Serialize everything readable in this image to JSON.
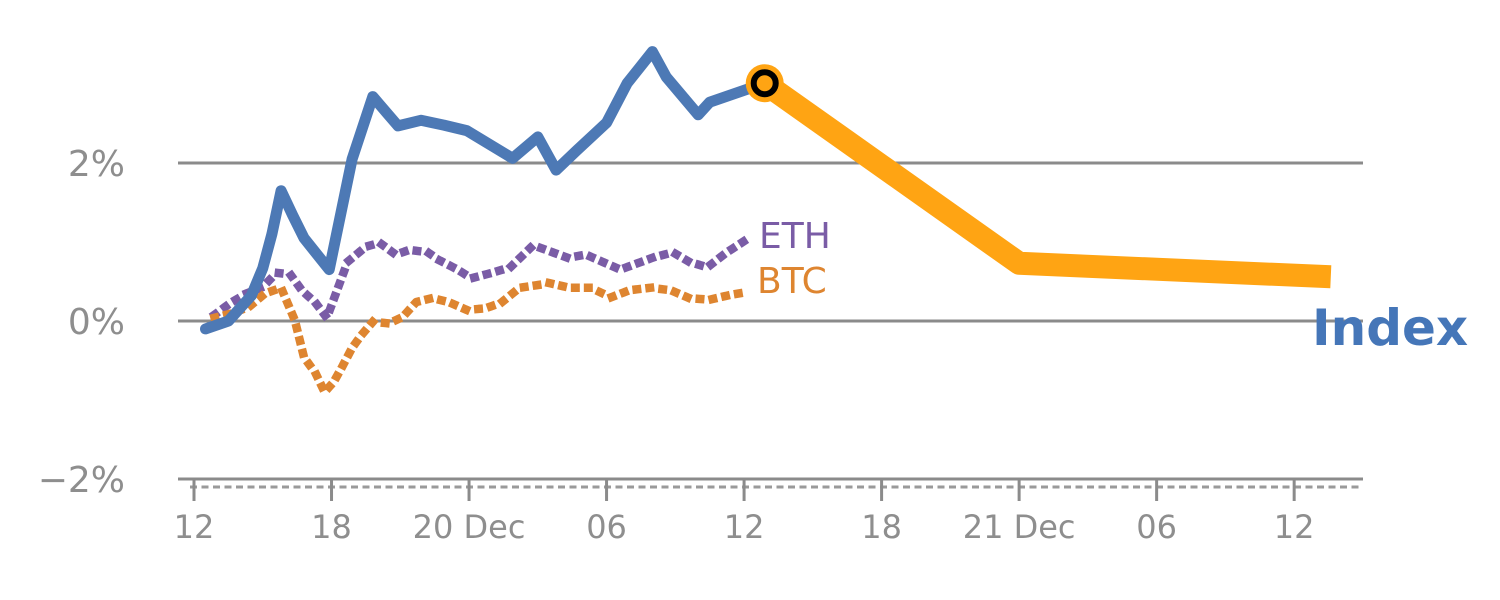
{
  "labels": {
    "eth": "ETH",
    "btc": "BTC",
    "index": "Index"
  },
  "colors": {
    "index_line": "#4d79b5",
    "index_label": "#4576b8",
    "forecast_line": "#ffa413",
    "eth": "#7a5ca6",
    "btc": "#de8530",
    "gridline": "#8b8b8b",
    "minor_ruler": "#9a9a9a",
    "tick_text": "#8e8e8e",
    "marker_ring": "#000000"
  },
  "chart_data": {
    "type": "line",
    "title": "",
    "xlabel": "",
    "ylabel": "",
    "x_unit": "hours, ticks every 6h",
    "ylim": [
      -2.3,
      3.6
    ],
    "grid": "horizontal-only",
    "y_axis": {
      "ticks": [
        {
          "label": "2%",
          "value": 2
        },
        {
          "label": "0%",
          "value": 0
        },
        {
          "label": "−2%",
          "value": -2
        }
      ]
    },
    "x_axis": {
      "ticks": [
        {
          "label": "12",
          "t": 0
        },
        {
          "label": "18",
          "t": 6
        },
        {
          "label": "20 Dec",
          "t": 12
        },
        {
          "label": "06",
          "t": 18
        },
        {
          "label": "12",
          "t": 24
        },
        {
          "label": "18",
          "t": 30
        },
        {
          "label": "21 Dec",
          "t": 36
        },
        {
          "label": "06",
          "t": 42
        },
        {
          "label": "12",
          "t": 48
        }
      ]
    },
    "series": [
      {
        "name": "ETH",
        "style": "dotted",
        "color": "#7a5ca6",
        "points": [
          [
            0.9,
            0.08
          ],
          [
            1.6,
            0.23
          ],
          [
            2.3,
            0.35
          ],
          [
            3.0,
            0.43
          ],
          [
            3.6,
            0.61
          ],
          [
            4.2,
            0.59
          ],
          [
            4.7,
            0.39
          ],
          [
            5.3,
            0.23
          ],
          [
            5.8,
            0.04
          ],
          [
            6.7,
            0.75
          ],
          [
            7.5,
            0.94
          ],
          [
            8.1,
            0.99
          ],
          [
            8.8,
            0.84
          ],
          [
            9.4,
            0.9
          ],
          [
            10.2,
            0.87
          ],
          [
            10.7,
            0.77
          ],
          [
            11.5,
            0.65
          ],
          [
            12.1,
            0.54
          ],
          [
            13.0,
            0.61
          ],
          [
            13.8,
            0.68
          ],
          [
            14.8,
            0.96
          ],
          [
            16.3,
            0.8
          ],
          [
            17.1,
            0.84
          ],
          [
            18.6,
            0.65
          ],
          [
            20.0,
            0.8
          ],
          [
            20.9,
            0.87
          ],
          [
            21.6,
            0.75
          ],
          [
            22.4,
            0.68
          ],
          [
            23.2,
            0.86
          ],
          [
            24.1,
            1.03
          ]
        ]
      },
      {
        "name": "BTC",
        "style": "dotted",
        "color": "#de8530",
        "points": [
          [
            0.9,
            0.04
          ],
          [
            1.7,
            0.1
          ],
          [
            2.4,
            0.18
          ],
          [
            3.1,
            0.35
          ],
          [
            3.8,
            0.42
          ],
          [
            4.4,
            0.01
          ],
          [
            4.8,
            -0.46
          ],
          [
            5.3,
            -0.66
          ],
          [
            5.7,
            -0.9
          ],
          [
            6.1,
            -0.77
          ],
          [
            6.5,
            -0.56
          ],
          [
            6.9,
            -0.34
          ],
          [
            7.3,
            -0.18
          ],
          [
            7.8,
            -0.01
          ],
          [
            8.5,
            -0.03
          ],
          [
            9.1,
            0.05
          ],
          [
            9.7,
            0.24
          ],
          [
            10.4,
            0.29
          ],
          [
            11.1,
            0.24
          ],
          [
            11.9,
            0.14
          ],
          [
            12.7,
            0.16
          ],
          [
            13.4,
            0.23
          ],
          [
            14.2,
            0.42
          ],
          [
            15.1,
            0.46
          ],
          [
            15.5,
            0.48
          ],
          [
            16.4,
            0.42
          ],
          [
            17.3,
            0.42
          ],
          [
            18.2,
            0.3
          ],
          [
            19.0,
            0.39
          ],
          [
            19.9,
            0.42
          ],
          [
            20.8,
            0.39
          ],
          [
            21.6,
            0.29
          ],
          [
            22.5,
            0.27
          ],
          [
            23.4,
            0.33
          ],
          [
            24.2,
            0.37
          ]
        ]
      },
      {
        "name": "Index",
        "style": "solid",
        "color": "#4d79b5",
        "points": [
          [
            0.5,
            -0.1
          ],
          [
            1.5,
            0.0
          ],
          [
            2.5,
            0.32
          ],
          [
            3.0,
            0.67
          ],
          [
            3.4,
            1.1
          ],
          [
            3.8,
            1.65
          ],
          [
            4.3,
            1.34
          ],
          [
            4.8,
            1.05
          ],
          [
            5.9,
            0.65
          ],
          [
            6.9,
            2.05
          ],
          [
            7.8,
            2.84
          ],
          [
            8.9,
            2.47
          ],
          [
            9.9,
            2.54
          ],
          [
            10.9,
            2.48
          ],
          [
            11.9,
            2.41
          ],
          [
            13.9,
            2.06
          ],
          [
            15.0,
            2.33
          ],
          [
            15.8,
            1.91
          ],
          [
            16.7,
            2.16
          ],
          [
            18.0,
            2.51
          ],
          [
            18.9,
            3.01
          ],
          [
            20.0,
            3.41
          ],
          [
            20.6,
            3.09
          ],
          [
            22.0,
            2.61
          ],
          [
            22.5,
            2.77
          ],
          [
            24.9,
            3.01
          ]
        ]
      },
      {
        "name": "Index forecast",
        "style": "solid-thick",
        "color": "#ffa413",
        "points": [
          [
            24.9,
            3.01
          ],
          [
            36.0,
            0.73
          ],
          [
            49.6,
            0.56
          ]
        ]
      }
    ],
    "marker": {
      "series": "Index",
      "t": 24.9,
      "value": 3.01
    }
  }
}
